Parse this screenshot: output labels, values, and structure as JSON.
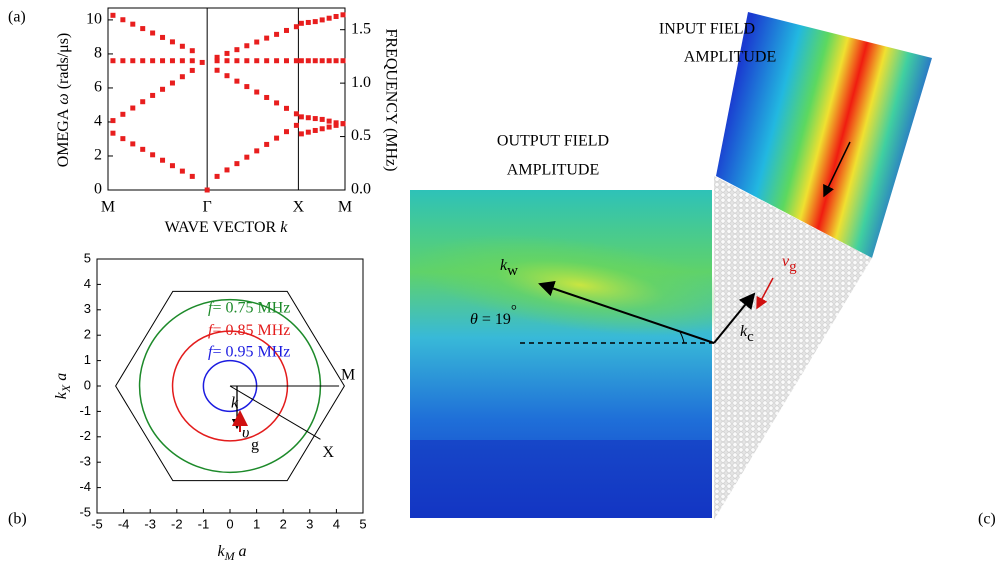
{
  "chart_data": [
    {
      "type": "scatter",
      "panel_label": "(a)",
      "color": "#e81e1e",
      "xlabel": "WAVE VECTOR",
      "xlabel_var": "k",
      "ylabel": "OMEGA",
      "ylabel_var": "ω",
      "ylabel_unit": "(rads/μs)",
      "y2label": "FREQUENCY (MHz)",
      "xlim": [
        0,
        2.39
      ],
      "xticks": [
        {
          "value": 0,
          "label": "M"
        },
        {
          "value": 1,
          "label": "Γ"
        },
        {
          "value": 1.92,
          "label": "X"
        },
        {
          "value": 2.39,
          "label": "M"
        }
      ],
      "ylim": [
        0,
        10.7
      ],
      "yticks": [
        0,
        2,
        4,
        6,
        8,
        10
      ],
      "y2lim": [
        0,
        1.703
      ],
      "y2ticks": [
        {
          "value": 0,
          "label": "0.0"
        },
        0.5,
        {
          "value": 1,
          "label": "1.0"
        },
        1.5
      ],
      "series": [
        {
          "x": [
            0.05,
            0.15,
            0.25,
            0.35,
            0.45,
            0.55,
            0.65,
            0.75,
            0.85
          ],
          "values": [
            3.34,
            3.02,
            2.71,
            2.39,
            2.07,
            1.75,
            1.43,
            1.11,
            0.8
          ]
        },
        {
          "x": [
            0.05,
            0.15,
            0.25,
            0.35,
            0.45,
            0.55,
            0.65,
            0.75,
            0.85
          ],
          "values": [
            4.08,
            4.45,
            4.82,
            5.19,
            5.56,
            5.92,
            6.29,
            6.66,
            7.03
          ]
        },
        {
          "x": [
            0.05,
            0.15,
            0.25,
            0.35,
            0.45,
            0.55,
            0.65,
            0.75,
            0.85,
            0.95
          ],
          "values": [
            7.6,
            7.6,
            7.6,
            7.6,
            7.6,
            7.6,
            7.6,
            7.6,
            7.6,
            7.5
          ]
        },
        {
          "x": [
            0.05,
            0.15,
            0.25,
            0.35,
            0.45,
            0.55,
            0.65,
            0.75,
            0.85
          ],
          "values": [
            10.27,
            10.01,
            9.75,
            9.49,
            9.23,
            8.97,
            8.71,
            8.45,
            8.19
          ]
        },
        {
          "x": [
            1
          ],
          "values": [
            0
          ]
        },
        {
          "x": [
            1.1,
            1.2,
            1.3,
            1.4,
            1.5,
            1.6,
            1.7,
            1.8,
            1.9
          ],
          "values": [
            0.8,
            1.18,
            1.55,
            1.93,
            2.3,
            2.68,
            3.05,
            3.43,
            3.8
          ]
        },
        {
          "x": [
            1.1,
            1.2,
            1.3,
            1.4,
            1.5,
            1.6,
            1.7,
            1.8,
            1.9
          ],
          "values": [
            7.04,
            6.72,
            6.4,
            6.08,
            5.76,
            5.44,
            5.12,
            4.8,
            4.48
          ]
        },
        {
          "x": [
            1.1,
            1.2,
            1.3,
            1.4,
            1.5,
            1.6,
            1.7,
            1.8,
            1.9
          ],
          "values": [
            7.6,
            7.6,
            7.6,
            7.6,
            7.6,
            7.6,
            7.6,
            7.6,
            7.6
          ]
        },
        {
          "x": [
            1.1,
            1.2,
            1.3,
            1.4,
            1.5,
            1.6,
            1.7,
            1.8,
            1.9
          ],
          "values": [
            7.8,
            8.03,
            8.25,
            8.48,
            8.7,
            8.93,
            9.15,
            9.38,
            9.6
          ]
        },
        {
          "x": [
            1.95,
            2.02,
            2.09,
            2.16,
            2.23,
            2.3,
            2.37
          ],
          "values": [
            9.8,
            9.85,
            9.9,
            10.0,
            10.1,
            10.2,
            10.3
          ]
        },
        {
          "x": [
            1.95,
            2.02,
            2.09,
            2.16,
            2.23,
            2.3,
            2.37
          ],
          "values": [
            7.6,
            7.6,
            7.6,
            7.6,
            7.6,
            7.6,
            7.6
          ]
        },
        {
          "x": [
            1.95,
            2.02,
            2.09,
            2.16,
            2.23,
            2.3,
            2.37
          ],
          "values": [
            4.3,
            4.25,
            4.2,
            4.15,
            4.05,
            3.95,
            3.9
          ]
        },
        {
          "x": [
            1.95,
            2.02,
            2.09,
            2.16,
            2.23,
            2.3,
            2.37
          ],
          "values": [
            3.3,
            3.4,
            3.5,
            3.6,
            3.7,
            3.8,
            3.9
          ]
        }
      ]
    },
    {
      "type": "reciprocal-lattice",
      "panel_label": "(b)",
      "xlabel": {
        "main": "k",
        "sub": "M",
        "tail": " a"
      },
      "ylabel": {
        "main": "k",
        "sub": "X",
        "tail": " a"
      },
      "xlim": [
        -5,
        5
      ],
      "xticks": [
        -5,
        -4,
        -3,
        -2,
        -1,
        0,
        1,
        2,
        3,
        4,
        5
      ],
      "ylim": [
        -5,
        5
      ],
      "yticks": [
        -5,
        -4,
        -3,
        -2,
        -1,
        0,
        1,
        2,
        3,
        4,
        5
      ],
      "hexagon_radius": 4.3,
      "circles": [
        {
          "var": "f",
          "label": "= 0.75 MHz",
          "radius": 3.4,
          "color": "#1d8a2a"
        },
        {
          "var": "f",
          "label": "= 0.85 MHz",
          "radius": 2.16,
          "color": "#e31c1c"
        },
        {
          "var": "f",
          "label": "= 0.95 MHz",
          "radius": 1.0,
          "color": "#1c1ce0"
        }
      ],
      "points": [
        {
          "label": "M",
          "x": 4.1,
          "y": 0
        },
        {
          "label": "X",
          "x": 3.4,
          "y": -2.1
        }
      ],
      "k_label": "k",
      "vg_label": "υ",
      "vg_sub": "g"
    }
  ],
  "panel_c": {
    "panel_label": "(c)",
    "input_title": [
      "INPUT FIELD",
      "AMPLITUDE"
    ],
    "output_title": [
      "OUTPUT FIELD",
      "AMPLITUDE"
    ],
    "kw": {
      "main": "k",
      "sub": "w"
    },
    "angle": {
      "var": "θ",
      "text": " = 19",
      "unit": "°"
    },
    "kc": {
      "main": "k",
      "sub": "c"
    },
    "vg": {
      "main": "v",
      "sub": "g"
    }
  }
}
